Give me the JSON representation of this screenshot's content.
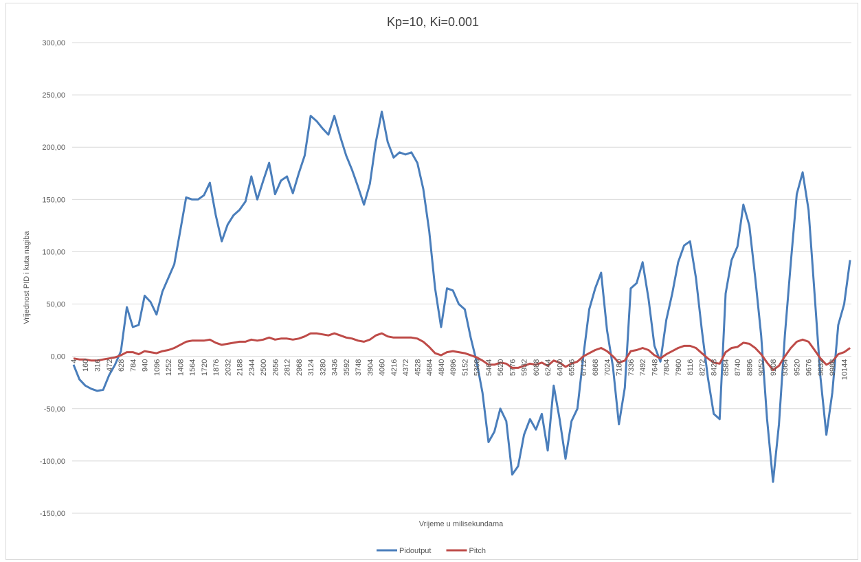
{
  "chart_data": {
    "type": "line",
    "title": "Kp=10, Ki=0.001",
    "x_label": "Vrijeme u milisekundama",
    "y_label": "Vrijednost PID i kuta nagiba",
    "grid": true,
    "legend": "bottom",
    "x": [
      4,
      82,
      160,
      238,
      316,
      394,
      472,
      550,
      628,
      706,
      784,
      862,
      940,
      1018,
      1096,
      1174,
      1252,
      1330,
      1408,
      1486,
      1564,
      1642,
      1720,
      1798,
      1876,
      1954,
      2032,
      2110,
      2188,
      2266,
      2344,
      2422,
      2500,
      2578,
      2656,
      2734,
      2812,
      2890,
      2968,
      3046,
      3124,
      3202,
      3280,
      3358,
      3436,
      3514,
      3592,
      3670,
      3748,
      3826,
      3904,
      3982,
      4060,
      4138,
      4216,
      4294,
      4372,
      4450,
      4528,
      4606,
      4684,
      4762,
      4840,
      4918,
      4996,
      5074,
      5152,
      5230,
      5308,
      5386,
      5464,
      5542,
      5620,
      5698,
      5776,
      5854,
      5932,
      6010,
      6088,
      6166,
      6244,
      6322,
      6400,
      6478,
      6556,
      6634,
      6712,
      6790,
      6868,
      6946,
      7024,
      7102,
      7180,
      7258,
      7336,
      7414,
      7492,
      7570,
      7648,
      7726,
      7804,
      7882,
      7960,
      8038,
      8116,
      8194,
      8272,
      8350,
      8428,
      8506,
      8584,
      8662,
      8740,
      8818,
      8896,
      8974,
      9052,
      9130,
      9208,
      9286,
      9364,
      9442,
      9520,
      9598,
      9676,
      9754,
      9832,
      9910,
      9988,
      10066,
      10144,
      10222
    ],
    "series": [
      {
        "name": "Pidoutput",
        "color": "#4a7ebb",
        "values": [
          -8,
          -22,
          -28,
          -31,
          -33,
          -32,
          -18,
          -8,
          5,
          47,
          28,
          30,
          58,
          52,
          40,
          62,
          75,
          88,
          120,
          152,
          150,
          150,
          154,
          166,
          135,
          110,
          126,
          135,
          140,
          148,
          172,
          150,
          168,
          185,
          155,
          168,
          172,
          156,
          175,
          192,
          230,
          225,
          218,
          212,
          230,
          210,
          192,
          178,
          162,
          145,
          165,
          205,
          234,
          205,
          190,
          195,
          193,
          195,
          185,
          160,
          120,
          65,
          28,
          65,
          63,
          50,
          45,
          18,
          -5,
          -35,
          -82,
          -72,
          -50,
          -62,
          -113,
          -105,
          -75,
          -60,
          -70,
          -55,
          -90,
          -28,
          -60,
          -98,
          -62,
          -50,
          0,
          45,
          65,
          80,
          25,
          -10,
          -65,
          -30,
          65,
          70,
          90,
          55,
          10,
          -5,
          35,
          60,
          90,
          106,
          110,
          75,
          25,
          -20,
          -55,
          -60,
          60,
          92,
          105,
          145,
          125,
          75,
          20,
          -60,
          -120,
          -65,
          20,
          90,
          155,
          176,
          140,
          60,
          -20,
          -75,
          -35,
          30,
          50,
          92
        ]
      },
      {
        "name": "Pitch",
        "color": "#be4b48",
        "values": [
          -2,
          -3,
          -3,
          -4,
          -4,
          -3,
          -2,
          -1,
          1,
          4,
          4,
          2,
          5,
          4,
          3,
          5,
          6,
          8,
          11,
          14,
          15,
          15,
          15,
          16,
          13,
          11,
          12,
          13,
          14,
          14,
          16,
          15,
          16,
          18,
          16,
          17,
          17,
          16,
          17,
          19,
          22,
          22,
          21,
          20,
          22,
          20,
          18,
          17,
          15,
          14,
          16,
          20,
          22,
          19,
          18,
          18,
          18,
          18,
          17,
          14,
          9,
          3,
          1,
          4,
          5,
          4,
          3,
          1,
          -1,
          -4,
          -8,
          -8,
          -6,
          -7,
          -11,
          -11,
          -9,
          -7,
          -8,
          -6,
          -9,
          -4,
          -6,
          -10,
          -7,
          -5,
          0,
          3,
          6,
          8,
          5,
          0,
          -6,
          -4,
          5,
          6,
          8,
          6,
          1,
          -2,
          2,
          5,
          8,
          10,
          10,
          8,
          3,
          -2,
          -6,
          -7,
          4,
          8,
          9,
          13,
          12,
          8,
          2,
          -6,
          -13,
          -9,
          0,
          8,
          14,
          16,
          14,
          6,
          -2,
          -8,
          -5,
          2,
          4,
          8
        ]
      }
    ],
    "xlim": [
      -14,
      10239
    ],
    "xticks": [
      4,
      160,
      316,
      472,
      628,
      784,
      940,
      1096,
      1252,
      1408,
      1564,
      1720,
      1876,
      2032,
      2188,
      2344,
      2500,
      2656,
      2812,
      2968,
      3124,
      3280,
      3436,
      3592,
      3748,
      3904,
      4060,
      4216,
      4372,
      4528,
      4684,
      4840,
      4996,
      5152,
      5308,
      5464,
      5620,
      5776,
      5932,
      6088,
      6244,
      6400,
      6556,
      6712,
      6868,
      7024,
      7180,
      7336,
      7492,
      7648,
      7804,
      7960,
      8116,
      8272,
      8428,
      8584,
      8740,
      8896,
      9052,
      9208,
      9364,
      9520,
      9676,
      9832,
      9988,
      10144
    ],
    "ylim": [
      -150,
      300
    ],
    "yticks": [
      {
        "value": -150,
        "label": "-150,00"
      },
      {
        "value": -100,
        "label": "-100,00"
      },
      {
        "value": -50,
        "label": "-50,00"
      },
      {
        "value": 0,
        "label": "0,00"
      },
      {
        "value": 50,
        "label": "50,00"
      },
      {
        "value": 100,
        "label": "100,00"
      },
      {
        "value": 150,
        "label": "150,00"
      },
      {
        "value": 200,
        "label": "200,00"
      },
      {
        "value": 250,
        "label": "250,00"
      },
      {
        "value": 300,
        "label": "300,00"
      }
    ]
  }
}
